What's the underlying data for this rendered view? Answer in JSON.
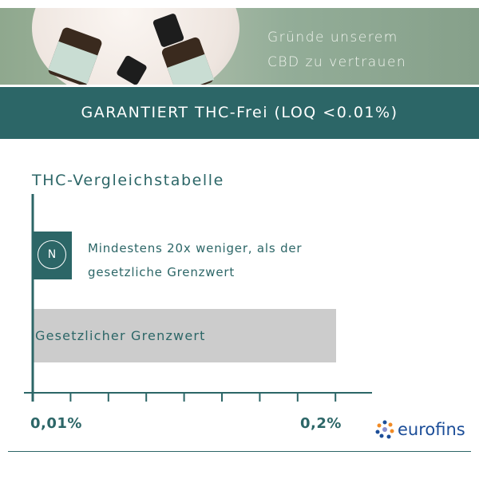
{
  "hero": {
    "line1": "Gründe unserem",
    "line2": "CBD zu vertrauen"
  },
  "banner": {
    "text": "GARANTIERT THC-Frei (LOQ <0.01%)"
  },
  "chart_data": {
    "type": "bar",
    "orientation": "horizontal",
    "title": "THC-Vergleichstabelle",
    "categories": [
      "Mindestens 20x weniger, als der gesetzliche Grenzwert",
      "Gesetzlicher Grenzwert"
    ],
    "values": [
      0.01,
      0.2
    ],
    "unit": "%",
    "tick_labels": [
      "0,01%",
      "0,2%"
    ],
    "brand_mark": "N",
    "colors": {
      "product": "#2c6667",
      "limit": "#cccccc"
    }
  },
  "texts": {
    "title": "THC-Vergleichstabelle",
    "product_line1": "Mindestens 20x weniger, als der",
    "product_line2": "gesetzliche Grenzwert",
    "limit_label": "Gesetzlicher Grenzwert",
    "tick_min": "0,01%",
    "tick_max": "0,2%",
    "brand_mark": "N",
    "eurofins": "eurofins"
  }
}
